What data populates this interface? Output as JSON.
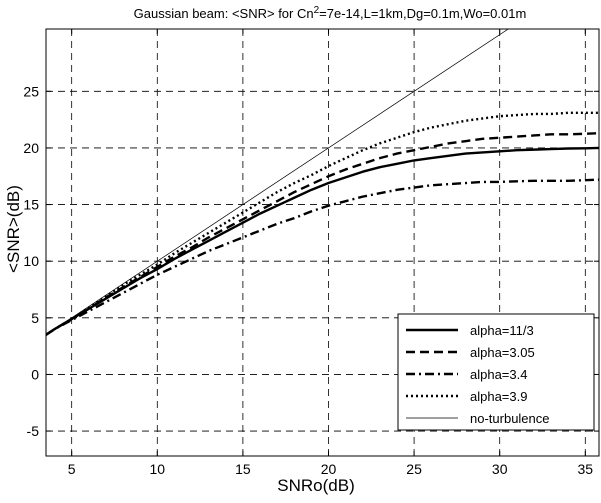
{
  "chart_data": {
    "type": "line",
    "title": {
      "prefix": "Gaussian beam: <SNR> for Cn",
      "superscript": "2",
      "suffix": "=7e-14,L=1km,Dg=0.1m,Wo=0.01m"
    },
    "xlabel": "SNRo(dB)",
    "ylabel": "<SNR>(dB)",
    "xlim": [
      3.5,
      35.8
    ],
    "ylim": [
      -7.2,
      30.5
    ],
    "xticks": [
      5,
      10,
      15,
      20,
      25,
      30,
      35
    ],
    "yticks": [
      -5,
      0,
      5,
      10,
      15,
      20,
      25
    ],
    "grid": "dashed",
    "legend_position": "bottom-right",
    "series": [
      {
        "name": "alpha=11/3",
        "style": "solid",
        "x": [
          3.5,
          4,
          5,
          6,
          7,
          8,
          9,
          10,
          11,
          12,
          13,
          14,
          15,
          16,
          17,
          18,
          19,
          20,
          21,
          22,
          23,
          24,
          25,
          26,
          27,
          28,
          29,
          30,
          31,
          32,
          33,
          34,
          35,
          35.8
        ],
        "y": [
          3.5,
          4.0,
          4.9,
          5.8,
          6.7,
          7.6,
          8.5,
          9.3,
          10.2,
          11.0,
          11.8,
          12.6,
          13.4,
          14.2,
          14.9,
          15.6,
          16.3,
          16.9,
          17.4,
          17.9,
          18.3,
          18.6,
          18.9,
          19.1,
          19.3,
          19.5,
          19.6,
          19.7,
          19.8,
          19.85,
          19.9,
          19.95,
          19.97,
          20.0
        ]
      },
      {
        "name": "alpha=3.05",
        "style": "dashed",
        "x": [
          3.5,
          4,
          5,
          6,
          7,
          8,
          9,
          10,
          11,
          12,
          13,
          14,
          15,
          16,
          17,
          18,
          19,
          20,
          21,
          22,
          23,
          24,
          25,
          26,
          27,
          28,
          29,
          30,
          31,
          32,
          33,
          34,
          35,
          35.8
        ],
        "y": [
          3.5,
          4.0,
          4.9,
          5.8,
          6.8,
          7.7,
          8.6,
          9.5,
          10.4,
          11.2,
          12.1,
          12.9,
          13.7,
          14.5,
          15.3,
          16.1,
          16.8,
          17.5,
          18.1,
          18.6,
          19.1,
          19.5,
          19.8,
          20.1,
          20.4,
          20.6,
          20.8,
          20.9,
          21.0,
          21.1,
          21.2,
          21.2,
          21.25,
          21.3
        ]
      },
      {
        "name": "alpha=3.4",
        "style": "dashdot",
        "x": [
          3.5,
          4,
          5,
          6,
          7,
          8,
          9,
          10,
          11,
          12,
          13,
          14,
          15,
          16,
          17,
          18,
          19,
          20,
          21,
          22,
          23,
          24,
          25,
          26,
          27,
          28,
          29,
          30,
          31,
          32,
          33,
          34,
          35,
          35.8
        ],
        "y": [
          3.5,
          4.0,
          4.8,
          5.6,
          6.4,
          7.2,
          8.0,
          8.8,
          9.5,
          10.2,
          10.9,
          11.5,
          12.1,
          12.7,
          13.3,
          13.8,
          14.4,
          14.9,
          15.3,
          15.7,
          16.0,
          16.3,
          16.5,
          16.7,
          16.8,
          16.9,
          17.0,
          17.0,
          17.05,
          17.1,
          17.1,
          17.1,
          17.15,
          17.2
        ]
      },
      {
        "name": "alpha=3.9",
        "style": "dotted",
        "x": [
          3.5,
          4,
          5,
          6,
          7,
          8,
          9,
          10,
          11,
          12,
          13,
          14,
          15,
          16,
          17,
          18,
          19,
          20,
          21,
          22,
          23,
          24,
          25,
          26,
          27,
          28,
          29,
          30,
          31,
          32,
          33,
          34,
          35,
          35.8
        ],
        "y": [
          3.5,
          4.0,
          4.9,
          5.9,
          6.9,
          7.9,
          8.8,
          9.7,
          10.7,
          11.6,
          12.5,
          13.4,
          14.3,
          15.2,
          16.1,
          16.9,
          17.6,
          18.4,
          19.1,
          19.8,
          20.4,
          20.9,
          21.4,
          21.8,
          22.1,
          22.4,
          22.6,
          22.8,
          22.9,
          23.0,
          23.0,
          23.1,
          23.1,
          23.1
        ]
      },
      {
        "name": "no-turbulence",
        "style": "thin",
        "x": [
          3.5,
          31
        ],
        "y": [
          3.5,
          31
        ]
      }
    ]
  }
}
